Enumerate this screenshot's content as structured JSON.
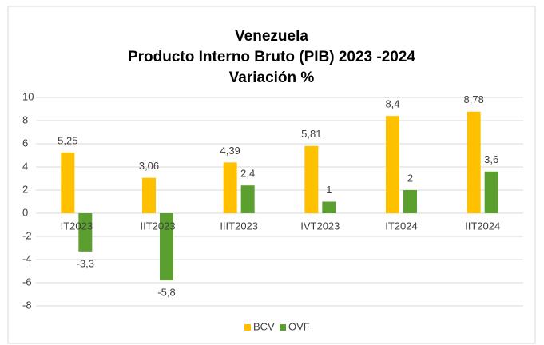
{
  "chart_data": {
    "type": "bar",
    "title": [
      "Venezuela",
      "Producto Interno Bruto (PIB) 2023 -2024",
      "Variación %"
    ],
    "categories": [
      "IT2023",
      "IIT2023",
      "IIIT2023",
      "IVT2023",
      "IT2024",
      "IIT2024"
    ],
    "series": [
      {
        "name": "BCV",
        "color": "#ffc000",
        "values": [
          5.25,
          3.06,
          4.39,
          5.81,
          8.4,
          8.78
        ],
        "value_labels": [
          "5,25",
          "3,06",
          "4,39",
          "5,81",
          "8,4",
          "8,78"
        ]
      },
      {
        "name": "OVF",
        "color": "#5b9f2e",
        "values": [
          -3.3,
          -5.8,
          2.4,
          1,
          2,
          3.6
        ],
        "value_labels": [
          "-3,3",
          "-5,8",
          "2,4",
          "1",
          "2",
          "3,6"
        ]
      }
    ],
    "ylim": [
      -8,
      10
    ],
    "yticks": [
      -8,
      -6,
      -4,
      -2,
      0,
      2,
      4,
      6,
      8,
      10
    ],
    "grid": true,
    "legend": "bottom"
  }
}
